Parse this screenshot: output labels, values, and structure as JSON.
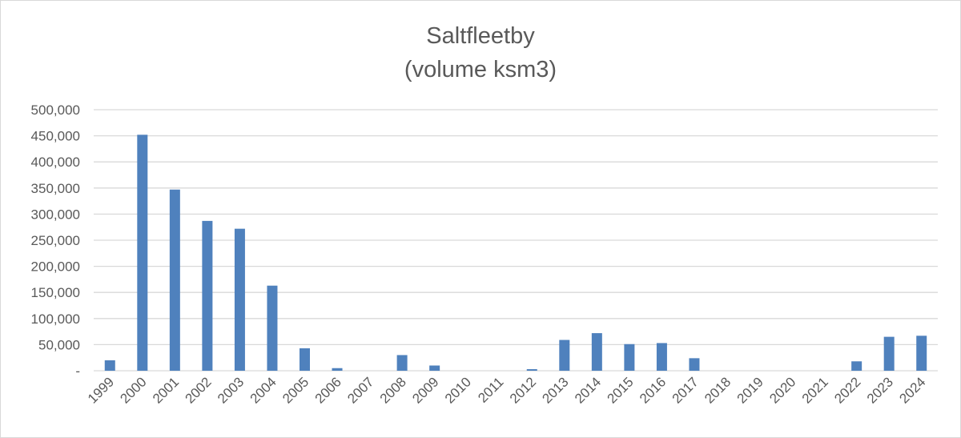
{
  "chart_data": {
    "type": "bar",
    "title": "Saltfleetby",
    "subtitle": "(volume ksm3)",
    "xlabel": "",
    "ylabel": "",
    "categories": [
      "1999",
      "2000",
      "2001",
      "2002",
      "2003",
      "2004",
      "2005",
      "2006",
      "2007",
      "2008",
      "2009",
      "2010",
      "2011",
      "2012",
      "2013",
      "2014",
      "2015",
      "2016",
      "2017",
      "2018",
      "2019",
      "2020",
      "2021",
      "2022",
      "2023",
      "2024"
    ],
    "values": [
      20000,
      452000,
      347000,
      287000,
      272000,
      163000,
      43000,
      5000,
      0,
      30000,
      10000,
      0,
      0,
      3000,
      59000,
      72000,
      51000,
      53000,
      24000,
      0,
      0,
      0,
      0,
      18000,
      65000,
      67000
    ],
    "ylim": [
      0,
      500000
    ],
    "yticks": [
      0,
      50000,
      100000,
      150000,
      200000,
      250000,
      300000,
      350000,
      400000,
      450000,
      500000
    ],
    "ytick_labels": [
      "-",
      "50,000",
      "100,000",
      "150,000",
      "200,000",
      "250,000",
      "300,000",
      "350,000",
      "400,000",
      "450,000",
      "500,000"
    ],
    "grid": true,
    "legend": "none",
    "colors": {
      "bar": "#4f81bd",
      "grid": "#d9d9d9",
      "text": "#595959",
      "border": "#d9d9d9"
    }
  }
}
